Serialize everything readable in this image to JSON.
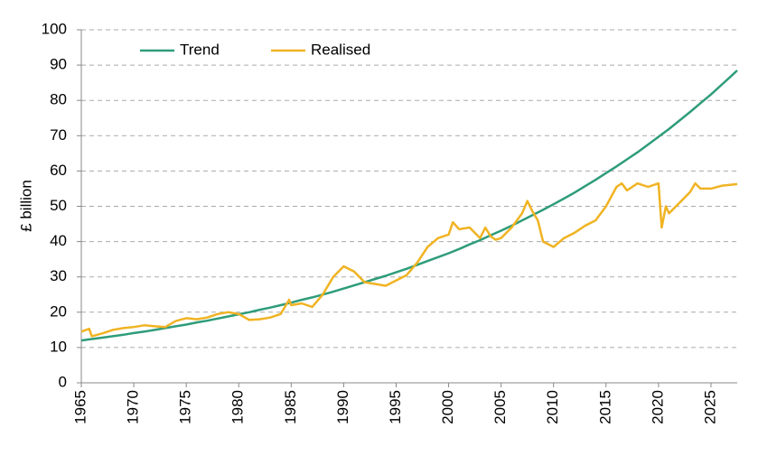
{
  "chart_data": {
    "type": "line",
    "y_label": "£ billion",
    "xlim": [
      1965,
      2027.5
    ],
    "ylim": [
      0,
      100
    ],
    "xticks": [
      1965,
      1970,
      1975,
      1980,
      1985,
      1990,
      1995,
      2000,
      2005,
      2010,
      2015,
      2020,
      2025
    ],
    "yticks": [
      0,
      10,
      20,
      30,
      40,
      50,
      60,
      70,
      80,
      90,
      100
    ],
    "grid": true,
    "legend": "top-left",
    "series": [
      {
        "name": "Trend",
        "color": "#2e9c7a",
        "x": [
          1965,
          1966,
          1967,
          1968,
          1969,
          1970,
          1971,
          1972,
          1973,
          1974,
          1975,
          1976,
          1977,
          1978,
          1979,
          1980,
          1981,
          1982,
          1983,
          1984,
          1985,
          1986,
          1987,
          1988,
          1989,
          1990,
          1991,
          1992,
          1993,
          1994,
          1995,
          1996,
          1997,
          1998,
          1999,
          2000,
          2001,
          2002,
          2003,
          2004,
          2005,
          2006,
          2007,
          2008,
          2009,
          2010,
          2011,
          2012,
          2013,
          2014,
          2015,
          2016,
          2017,
          2018,
          2019,
          2020,
          2021,
          2022,
          2023,
          2024,
          2025,
          2026,
          2027,
          2027.5
        ],
        "values": [
          12.0,
          12.4,
          12.8,
          13.2,
          13.6,
          14.1,
          14.5,
          15.0,
          15.5,
          16.0,
          16.5,
          17.1,
          17.6,
          18.2,
          18.8,
          19.4,
          20.0,
          20.7,
          21.3,
          22.0,
          22.7,
          23.5,
          24.2,
          25.0,
          25.8,
          26.7,
          27.6,
          28.5,
          29.4,
          30.3,
          31.3,
          32.3,
          33.4,
          34.5,
          35.6,
          36.7,
          37.9,
          39.2,
          40.4,
          41.8,
          43.1,
          44.5,
          46.0,
          47.5,
          49.0,
          50.6,
          52.2,
          53.9,
          55.7,
          57.5,
          59.4,
          61.3,
          63.3,
          65.3,
          67.5,
          69.7,
          71.9,
          74.3,
          76.7,
          79.2,
          81.7,
          84.4,
          87.1,
          88.5
        ]
      },
      {
        "name": "Realised",
        "color": "#f0b323",
        "x": [
          1965,
          1965.75,
          1966,
          1967,
          1968,
          1969,
          1970,
          1971,
          1972,
          1973,
          1974,
          1975,
          1976,
          1977,
          1978,
          1979,
          1980,
          1981,
          1982,
          1983,
          1984,
          1984.8,
          1985,
          1986,
          1987,
          1988,
          1989,
          1990,
          1991,
          1992,
          1993,
          1994,
          1995,
          1996,
          1997,
          1998,
          1999,
          2000,
          2000.4,
          2001,
          2002,
          2003,
          2003.5,
          2004,
          2004.5,
          2005,
          2006,
          2007,
          2007.5,
          2008,
          2008.5,
          2009,
          2010,
          2011,
          2012,
          2013,
          2014,
          2015,
          2016,
          2016.5,
          2017,
          2018,
          2019,
          2020,
          2020.3,
          2020.7,
          2021,
          2022,
          2023,
          2023.5,
          2024,
          2025,
          2026,
          2027.5
        ],
        "values": [
          14.5,
          15.3,
          13.2,
          14,
          15,
          15.5,
          15.8,
          16.3,
          16,
          15.8,
          17.5,
          18.3,
          18,
          18.5,
          19.5,
          20,
          19.5,
          17.8,
          18,
          18.5,
          19.5,
          23.5,
          22,
          22.5,
          21.5,
          25,
          30,
          33,
          31.5,
          28.5,
          28,
          27.5,
          29,
          30.5,
          34,
          38.5,
          41,
          42,
          45.5,
          43.5,
          44,
          41,
          44,
          41.5,
          40.5,
          41,
          44,
          48,
          51.5,
          48.5,
          46,
          40,
          38.5,
          41,
          42.5,
          44.5,
          46,
          50,
          55.5,
          56.5,
          54.5,
          56.5,
          55.5,
          56.5,
          44,
          50,
          48,
          51,
          54,
          56.5,
          55,
          55,
          55.8,
          56.3
        ]
      }
    ]
  }
}
